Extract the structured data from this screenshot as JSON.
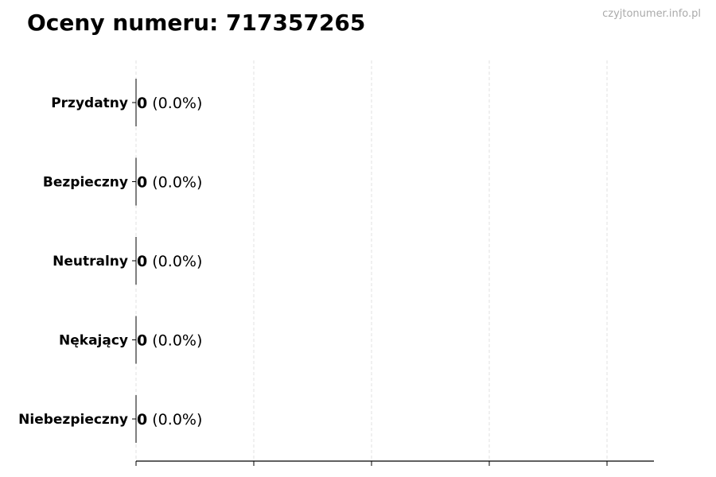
{
  "title": "Oceny numeru: 717357265",
  "watermark": "czyjtonumer.info.pl",
  "chart_data": {
    "type": "bar",
    "orientation": "horizontal",
    "title": "Oceny numeru: 717357265",
    "categories": [
      "Przydatny",
      "Bezpieczny",
      "Neutralny",
      "Nękający",
      "Niebezpieczny"
    ],
    "values": [
      0,
      0,
      0,
      0,
      0
    ],
    "data_labels": [
      {
        "count": "0",
        "percent": "(0.0%)"
      },
      {
        "count": "0",
        "percent": "(0.0%)"
      },
      {
        "count": "0",
        "percent": "(0.0%)"
      },
      {
        "count": "0",
        "percent": "(0.0%)"
      },
      {
        "count": "0",
        "percent": "(0.0%)"
      }
    ],
    "xlabel": "",
    "ylabel": "",
    "x_tick_count": 5,
    "x_tick_labels": [],
    "grid": "x-dashed",
    "colors": {
      "grid": "#d9d9d9",
      "axis": "#000000",
      "watermark": "#aaaaaa"
    }
  }
}
